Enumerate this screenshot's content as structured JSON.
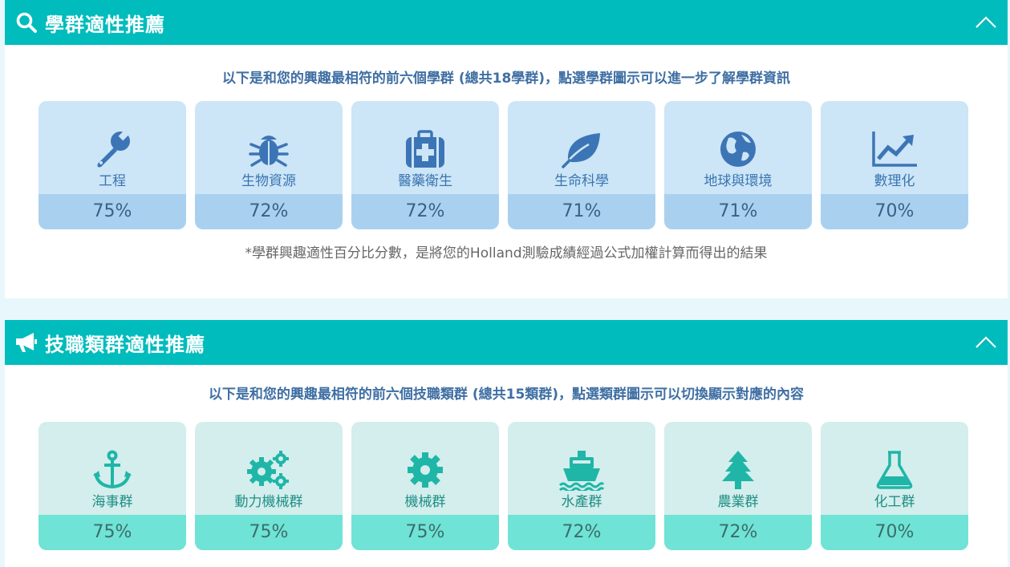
{
  "section1": {
    "title": "學群適性推薦",
    "icon": "search-icon",
    "collapse_icon": "chevron-up-icon",
    "intro": "以下是和您的興趣最相符的前六個學群 (總共18學群)，點選學群圖示可以進一步了解學群資訊",
    "note": "*學群興趣適性百分比分數，是將您的Holland測驗成績經過公式加權計算而得出的結果",
    "icon_color": "#3c75b5",
    "cards": [
      {
        "label": "工程",
        "percent": "75%",
        "icon": "wrench-icon"
      },
      {
        "label": "生物資源",
        "percent": "72%",
        "icon": "bug-icon"
      },
      {
        "label": "醫藥衛生",
        "percent": "72%",
        "icon": "medkit-icon"
      },
      {
        "label": "生命科學",
        "percent": "71%",
        "icon": "leaf-icon"
      },
      {
        "label": "地球與環境",
        "percent": "71%",
        "icon": "globe-icon"
      },
      {
        "label": "數理化",
        "percent": "70%",
        "icon": "line-chart-icon"
      }
    ]
  },
  "section2": {
    "title": "技職類群適性推薦",
    "icon": "bullhorn-icon",
    "collapse_icon": "chevron-up-icon",
    "intro": "以下是和您的興趣最相符的前六個技職類群 (總共15類群)，點選類群圖示可以切換顯示對應的內容",
    "icon_color": "#1fb6a8",
    "cards": [
      {
        "label": "海事群",
        "percent": "75%",
        "icon": "anchor-icon"
      },
      {
        "label": "動力機械群",
        "percent": "75%",
        "icon": "gears-icon"
      },
      {
        "label": "機械群",
        "percent": "75%",
        "icon": "gear-icon"
      },
      {
        "label": "水產群",
        "percent": "72%",
        "icon": "ship-icon"
      },
      {
        "label": "農業群",
        "percent": "72%",
        "icon": "tree-icon"
      },
      {
        "label": "化工群",
        "percent": "70%",
        "icon": "flask-icon"
      }
    ]
  }
}
